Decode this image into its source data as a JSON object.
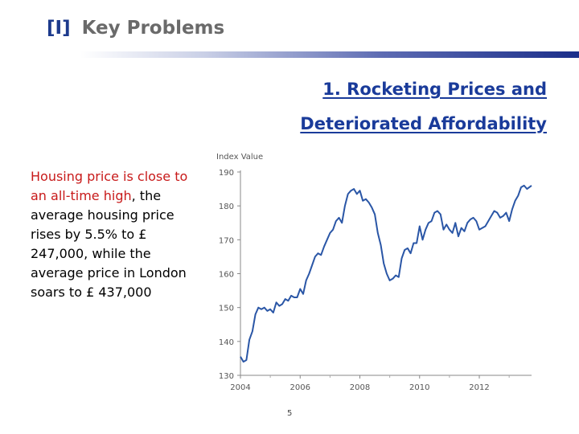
{
  "slide": {
    "title_prefix": "[I]",
    "title": "Key Problems",
    "subtitle_line1": "1. Rocketing Prices and",
    "subtitle_line2": "Deteriorated Affordability",
    "highlight_text": "Housing price is close to an all-time high",
    "body_text": ", the average housing price rises by 5.5% to £ 247,000, while the average price in London soars to £ 437,000",
    "page_number": "5"
  },
  "colors": {
    "title_prefix": "#1c3a8c",
    "title_text": "#6a6a6a",
    "subtitle": "#1a3b9a",
    "highlight": "#c81a1a",
    "series_line": "#2a56a6"
  },
  "chart_data": {
    "type": "line",
    "title": "",
    "ylabel": "Index Value",
    "xlabel": "",
    "ylim": [
      130,
      190
    ],
    "xlim": [
      2004,
      2013.75
    ],
    "yticks": [
      130,
      140,
      150,
      160,
      170,
      180,
      190
    ],
    "xticks": [
      2004,
      2006,
      2008,
      2010,
      2012
    ],
    "grid": false,
    "series": [
      {
        "name": "Index Value",
        "x": [
          2004.0,
          2004.1,
          2004.2,
          2004.3,
          2004.4,
          2004.5,
          2004.6,
          2004.7,
          2004.8,
          2004.9,
          2005.0,
          2005.1,
          2005.2,
          2005.3,
          2005.4,
          2005.5,
          2005.6,
          2005.7,
          2005.8,
          2005.9,
          2006.0,
          2006.1,
          2006.2,
          2006.3,
          2006.4,
          2006.5,
          2006.6,
          2006.7,
          2006.8,
          2006.9,
          2007.0,
          2007.1,
          2007.2,
          2007.3,
          2007.4,
          2007.5,
          2007.6,
          2007.7,
          2007.8,
          2007.9,
          2008.0,
          2008.1,
          2008.2,
          2008.3,
          2008.4,
          2008.5,
          2008.6,
          2008.7,
          2008.8,
          2008.9,
          2009.0,
          2009.1,
          2009.2,
          2009.3,
          2009.4,
          2009.5,
          2009.6,
          2009.7,
          2009.8,
          2009.9,
          2010.0,
          2010.1,
          2010.2,
          2010.3,
          2010.4,
          2010.5,
          2010.6,
          2010.7,
          2010.8,
          2010.9,
          2011.0,
          2011.1,
          2011.2,
          2011.3,
          2011.4,
          2011.5,
          2011.6,
          2011.7,
          2011.8,
          2011.9,
          2012.0,
          2012.1,
          2012.2,
          2012.3,
          2012.4,
          2012.5,
          2012.6,
          2012.7,
          2012.8,
          2012.9,
          2013.0,
          2013.1,
          2013.2,
          2013.3,
          2013.4,
          2013.5,
          2013.6,
          2013.75
        ],
        "values": [
          135.5,
          134.0,
          134.5,
          140.5,
          143.0,
          148.0,
          150.0,
          149.5,
          150.0,
          149.0,
          149.5,
          148.5,
          151.5,
          150.5,
          151.0,
          152.5,
          152.0,
          153.5,
          153.0,
          153.0,
          155.5,
          154.0,
          158.0,
          160.0,
          162.5,
          165.0,
          166.0,
          165.5,
          168.0,
          170.0,
          172.0,
          173.0,
          175.5,
          176.5,
          175.0,
          180.0,
          183.5,
          184.5,
          185.0,
          183.5,
          184.5,
          181.5,
          182.0,
          181.0,
          179.5,
          177.5,
          172.0,
          168.5,
          163.0,
          160.0,
          158.0,
          158.5,
          159.5,
          159.0,
          164.5,
          167.0,
          167.5,
          166.0,
          169.0,
          169.0,
          174.0,
          170.0,
          173.0,
          175.0,
          175.5,
          178.0,
          178.5,
          177.5,
          173.0,
          174.5,
          173.0,
          172.0,
          175.0,
          171.0,
          173.5,
          172.5,
          175.0,
          176.0,
          176.5,
          175.5,
          173.0,
          173.5,
          174.0,
          175.5,
          177.0,
          178.5,
          178.0,
          176.5,
          177.0,
          178.0,
          175.5,
          179.0,
          181.5,
          183.0,
          185.5,
          186.0,
          185.0,
          186.0
        ]
      }
    ]
  }
}
